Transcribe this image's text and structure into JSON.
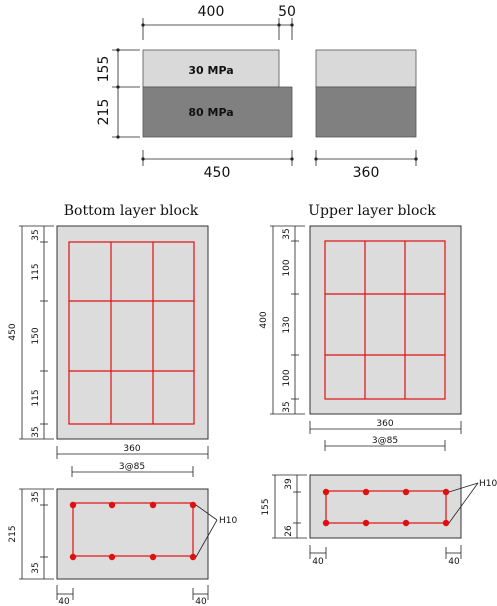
{
  "top": {
    "dims": {
      "w400": "400",
      "w50": "50",
      "h155": "155",
      "h215": "215",
      "w450": "450",
      "w360": "360"
    },
    "materials": {
      "upper": "30 MPa",
      "lower": "80 MPa"
    },
    "colors": {
      "upper_fill": "#d9d9d9",
      "lower_fill": "#808080"
    }
  },
  "bottom_block": {
    "title": "Bottom layer block",
    "plan_dims": {
      "v35a": "35",
      "v115a": "115",
      "v150": "150",
      "v115b": "115",
      "v35b": "35",
      "total": "450",
      "width": "360"
    },
    "section_dims": {
      "spacing": "3@85",
      "h35a": "35",
      "h35b": "35",
      "height": "215",
      "c40a": "40",
      "c40b": "40",
      "bar": "H10"
    }
  },
  "upper_block": {
    "title": "Upper layer block",
    "plan_dims": {
      "v35a": "35",
      "v100a": "100",
      "v130": "130",
      "v100b": "100",
      "v35b": "35",
      "total": "400",
      "width": "360",
      "spacing": "3@85"
    },
    "section_dims": {
      "h39": "39",
      "h26": "26",
      "height": "155",
      "c40a": "40",
      "c40b": "40",
      "bar": "H10"
    }
  },
  "colors": {
    "concrete": "#dcdcdc",
    "rebar": "#e01010"
  }
}
